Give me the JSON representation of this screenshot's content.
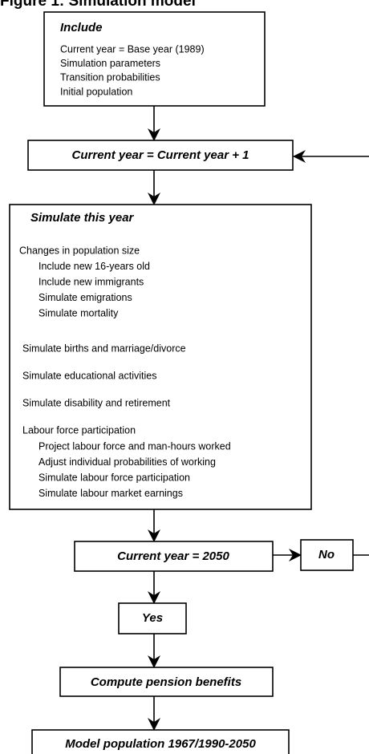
{
  "title": "Figure 1: Simulation model",
  "include": {
    "title": "Include",
    "lines": [
      "Current year = Base year (1989)",
      "Simulation parameters",
      "Transition probabilities",
      "Initial population"
    ]
  },
  "increment": "Current year = Current year + 1",
  "simulate": {
    "title": "Simulate this year",
    "groups": [
      {
        "heading": "Changes in population size",
        "items": [
          "Include new 16-years old",
          "Include new immigrants",
          "Simulate emigrations",
          "Simulate mortality"
        ]
      },
      {
        "heading": "Simulate births and marriage/divorce",
        "items": []
      },
      {
        "heading": "Simulate educational activities",
        "items": []
      },
      {
        "heading": "Simulate disability and retirement",
        "items": []
      },
      {
        "heading": "Labour force participation",
        "items": [
          "Project labour force and man-hours worked",
          "Adjust individual probabilities of working",
          "Simulate labour force participation",
          "Simulate labour market earnings"
        ]
      }
    ]
  },
  "decision": {
    "question": "Current year = 2050",
    "no": "No",
    "yes": "Yes"
  },
  "compute": "Compute pension benefits",
  "output": "Model population 1967/1990-2050"
}
